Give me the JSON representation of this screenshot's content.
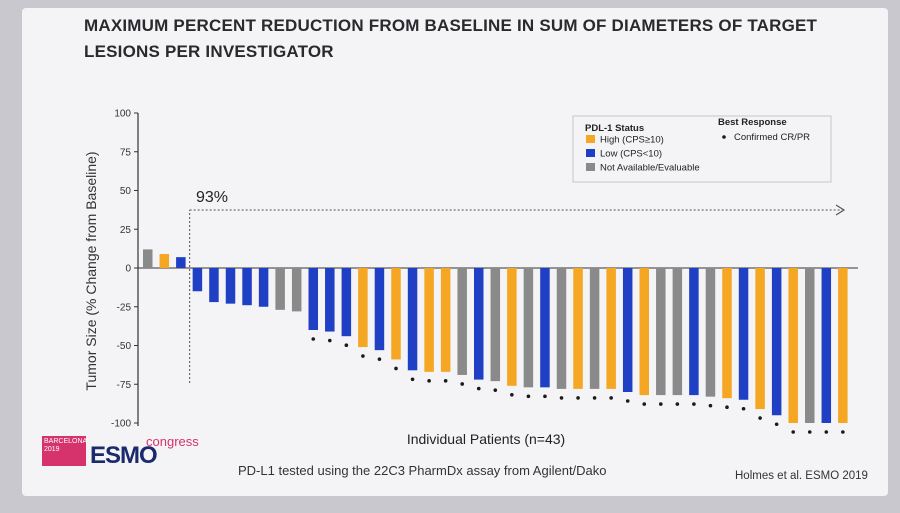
{
  "title": {
    "line1": "MAXIMUM PERCENT REDUCTION FROM BASELINE IN SUM OF DIAMETERS OF TARGET",
    "line2": "LESIONS PER INVESTIGATOR"
  },
  "subtitle": "PD-L1 tested using the 22C3 PharmDx assay from Agilent/Dako",
  "citation": "Holmes et al. ESMO 2019",
  "logo": {
    "city_line1": "BARCELONA",
    "city_line2": "2019",
    "brand": "ESMO",
    "word": "congress"
  },
  "colors": {
    "high": "#f5a623",
    "low": "#1f3fc4",
    "na": "#8a8a8a",
    "dot": "#1a1a1a",
    "axis": "#333333",
    "arrow": "#555555"
  },
  "chart_data": {
    "type": "bar",
    "ylabel": "Tumor Size (% Change from Baseline)",
    "xlabel": "Individual Patients (n=43)",
    "ylim": [
      -100,
      100
    ],
    "yticks": [
      100,
      75,
      50,
      25,
      0,
      -25,
      -50,
      -75,
      -100
    ],
    "ytick_labels": [
      "100",
      "75",
      "50",
      "25",
      "0",
      "-25",
      "-50",
      "-75",
      "-100"
    ],
    "annotation": "93%",
    "legend": {
      "placement": "top-right",
      "status_title": "PDL-1 Status",
      "status_items": [
        {
          "label": "High (CPS≥10)",
          "key": "high"
        },
        {
          "label": "Low (CPS<10)",
          "key": "low"
        },
        {
          "label": "Not Available/Evaluable",
          "key": "na"
        }
      ],
      "response_title": "Best Response",
      "response_items": [
        {
          "label": "Confirmed CR/PR",
          "key": "dot"
        }
      ]
    },
    "status_keys": [
      "na",
      "high",
      "low",
      "low",
      "low",
      "low",
      "low",
      "low",
      "na",
      "na",
      "low",
      "low",
      "low",
      "high",
      "low",
      "high",
      "low",
      "high",
      "high",
      "na",
      "low",
      "na",
      "high",
      "na",
      "low",
      "na",
      "high",
      "na",
      "high",
      "low",
      "high",
      "na",
      "na",
      "low",
      "na",
      "high",
      "low",
      "high",
      "low",
      "high",
      "na",
      "low",
      "high"
    ],
    "values": [
      12,
      9,
      7,
      -15,
      -22,
      -23,
      -24,
      -25,
      -27,
      -28,
      -40,
      -41,
      -44,
      -51,
      -53,
      -59,
      -66,
      -67,
      -67,
      -69,
      -72,
      -73,
      -76,
      -77,
      -77,
      -78,
      -78,
      -78,
      -78,
      -80,
      -82,
      -82,
      -82,
      -82,
      -83,
      -84,
      -85,
      -91,
      -95,
      -100,
      -100,
      -100,
      -100
    ],
    "confirmed_response": [
      false,
      false,
      false,
      false,
      false,
      false,
      false,
      false,
      false,
      false,
      true,
      true,
      true,
      true,
      true,
      true,
      true,
      true,
      true,
      true,
      true,
      true,
      true,
      true,
      true,
      true,
      true,
      true,
      true,
      true,
      true,
      true,
      true,
      true,
      true,
      true,
      true,
      true,
      true,
      true,
      true,
      true,
      true
    ]
  }
}
